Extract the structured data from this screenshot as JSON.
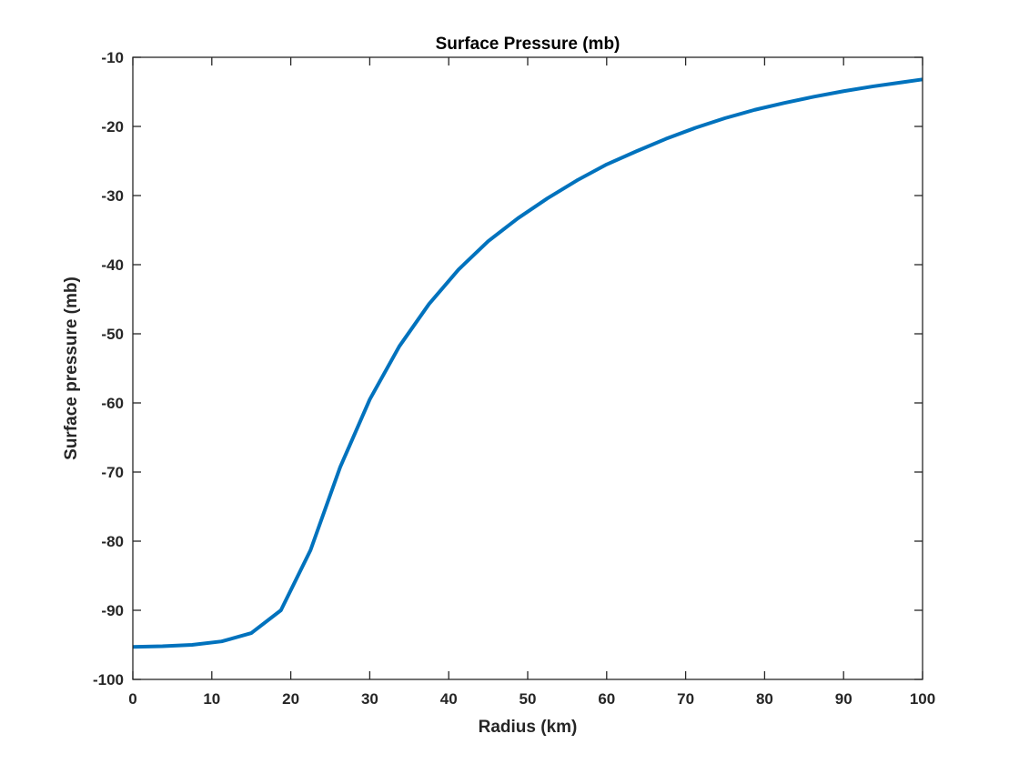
{
  "chart_data": {
    "type": "line",
    "title": "Surface Pressure (mb)",
    "xlabel": "Radius (km)",
    "ylabel": "Surface pressure (mb)",
    "xlim": [
      0,
      100
    ],
    "ylim": [
      -100,
      -10
    ],
    "xticks": [
      0,
      10,
      20,
      30,
      40,
      50,
      60,
      70,
      80,
      90,
      100
    ],
    "yticks": [
      -100,
      -90,
      -80,
      -70,
      -60,
      -50,
      -40,
      -30,
      -20,
      -10
    ],
    "grid": false,
    "series": [
      {
        "color": "#0072BD",
        "x": [
          0,
          3.75,
          7.5,
          11.25,
          15,
          18.75,
          22.5,
          26.25,
          30,
          33.75,
          37.5,
          41.25,
          45,
          48.75,
          52.5,
          56.25,
          60,
          63.75,
          67.5,
          71.25,
          75,
          78.75,
          82.5,
          86.25,
          90,
          93.75,
          97.5,
          100
        ],
        "y": [
          -95.3,
          -95.2,
          -95.0,
          -94.5,
          -93.3,
          -90.0,
          -81.3,
          -69.3,
          -59.5,
          -51.8,
          -45.7,
          -40.7,
          -36.6,
          -33.3,
          -30.4,
          -27.8,
          -25.5,
          -23.6,
          -21.8,
          -20.2,
          -18.8,
          -17.6,
          -16.6,
          -15.7,
          -14.9,
          -14.2,
          -13.6,
          -13.2
        ]
      }
    ]
  }
}
